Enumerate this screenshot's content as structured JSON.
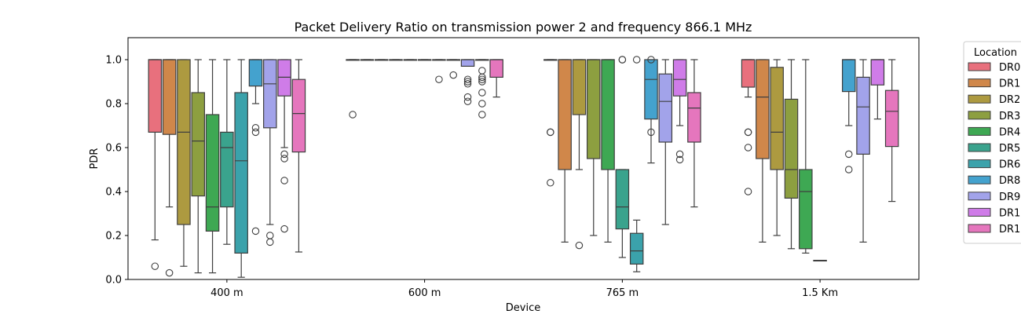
{
  "chart_data": {
    "type": "box",
    "title": "Packet Delivery Ratio on transmission power 2 and frequency 866.1 MHz",
    "xlabel": "Device",
    "ylabel": "PDR",
    "ylim": [
      0,
      1.1
    ],
    "yticks": [
      "0.0",
      "0.2",
      "0.4",
      "0.6",
      "0.8",
      "1.0"
    ],
    "categories": [
      "400 m",
      "600 m",
      "765 m",
      "1.5 Km"
    ],
    "legend": {
      "title": "Location",
      "placement": "outside-right",
      "entries": [
        "DR0",
        "DR1",
        "DR2",
        "DR3",
        "DR4",
        "DR5",
        "DR6",
        "DR8",
        "DR9",
        "DR1",
        "DR1"
      ]
    },
    "series": [
      {
        "name": "DR0",
        "color": "#e8707d",
        "boxes": [
          {
            "category": "400 m",
            "whislo": 0.18,
            "q1": 0.67,
            "median": 1.0,
            "q3": 1.0,
            "whishi": 1.0,
            "fliers": [
              0.06
            ]
          },
          {
            "category": "600 m",
            "whislo": 1.0,
            "q1": 1.0,
            "median": 1.0,
            "q3": 1.0,
            "whishi": 1.0,
            "fliers": [
              0.75
            ]
          },
          {
            "category": "765 m",
            "whislo": 1.0,
            "q1": 1.0,
            "median": 1.0,
            "q3": 1.0,
            "whishi": 1.0,
            "fliers": [
              0.67,
              0.67,
              0.44
            ]
          },
          {
            "category": "1.5 Km",
            "whislo": 0.83,
            "q1": 0.875,
            "median": 1.0,
            "q3": 1.0,
            "whishi": 1.0,
            "fliers": [
              0.67,
              0.67,
              0.6,
              0.4
            ]
          }
        ]
      },
      {
        "name": "DR1",
        "color": "#d0874a",
        "boxes": [
          {
            "category": "400 m",
            "whislo": 0.33,
            "q1": 0.66,
            "median": 1.0,
            "q3": 1.0,
            "whishi": 1.0,
            "fliers": [
              0.03
            ]
          },
          {
            "category": "600 m",
            "whislo": 1.0,
            "q1": 1.0,
            "median": 1.0,
            "q3": 1.0,
            "whishi": 1.0,
            "fliers": []
          },
          {
            "category": "765 m",
            "whislo": 0.17,
            "q1": 0.5,
            "median": 1.0,
            "q3": 1.0,
            "whishi": 1.0,
            "fliers": []
          },
          {
            "category": "1.5 Km",
            "whislo": 0.17,
            "q1": 0.55,
            "median": 0.83,
            "q3": 1.0,
            "whishi": 1.0,
            "fliers": []
          }
        ]
      },
      {
        "name": "DR2",
        "color": "#ad9a40",
        "boxes": [
          {
            "category": "400 m",
            "whislo": 0.06,
            "q1": 0.25,
            "median": 0.67,
            "q3": 1.0,
            "whishi": 1.0,
            "fliers": []
          },
          {
            "category": "600 m",
            "whislo": 1.0,
            "q1": 1.0,
            "median": 1.0,
            "q3": 1.0,
            "whishi": 1.0,
            "fliers": []
          },
          {
            "category": "765 m",
            "whislo": 0.5,
            "q1": 0.75,
            "median": 1.0,
            "q3": 1.0,
            "whishi": 1.0,
            "fliers": [
              0.155
            ]
          },
          {
            "category": "1.5 Km",
            "whislo": 0.2,
            "q1": 0.5,
            "median": 0.67,
            "q3": 0.965,
            "whishi": 1.0,
            "fliers": []
          }
        ]
      },
      {
        "name": "DR3",
        "color": "#8d9f40",
        "boxes": [
          {
            "category": "400 m",
            "whislo": 0.03,
            "q1": 0.38,
            "median": 0.63,
            "q3": 0.85,
            "whishi": 1.0,
            "fliers": []
          },
          {
            "category": "600 m",
            "whislo": 1.0,
            "q1": 1.0,
            "median": 1.0,
            "q3": 1.0,
            "whishi": 1.0,
            "fliers": []
          },
          {
            "category": "765 m",
            "whislo": 0.2,
            "q1": 0.55,
            "median": 1.0,
            "q3": 1.0,
            "whishi": 1.0,
            "fliers": []
          },
          {
            "category": "1.5 Km",
            "whislo": 0.14,
            "q1": 0.37,
            "median": 0.5,
            "q3": 0.82,
            "whishi": 1.0,
            "fliers": []
          }
        ]
      },
      {
        "name": "DR4",
        "color": "#3ea853",
        "boxes": [
          {
            "category": "400 m",
            "whislo": 0.03,
            "q1": 0.22,
            "median": 0.33,
            "q3": 0.75,
            "whishi": 1.0,
            "fliers": []
          },
          {
            "category": "600 m",
            "whislo": 1.0,
            "q1": 1.0,
            "median": 1.0,
            "q3": 1.0,
            "whishi": 1.0,
            "fliers": []
          },
          {
            "category": "765 m",
            "whislo": 0.17,
            "q1": 0.5,
            "median": 1.0,
            "q3": 1.0,
            "whishi": 1.0,
            "fliers": []
          },
          {
            "category": "1.5 Km",
            "whislo": 0.12,
            "q1": 0.14,
            "median": 0.4,
            "q3": 0.5,
            "whishi": 1.0,
            "fliers": []
          }
        ]
      },
      {
        "name": "DR5",
        "color": "#3aa38d",
        "boxes": [
          {
            "category": "400 m",
            "whislo": 0.16,
            "q1": 0.33,
            "median": 0.6,
            "q3": 0.67,
            "whishi": 1.0,
            "fliers": []
          },
          {
            "category": "600 m",
            "whislo": 1.0,
            "q1": 1.0,
            "median": 1.0,
            "q3": 1.0,
            "whishi": 1.0,
            "fliers": []
          },
          {
            "category": "765 m",
            "whislo": 0.1,
            "q1": 0.23,
            "median": 0.33,
            "q3": 0.5,
            "whishi": 0.5,
            "fliers": [
              1.0,
              1.0
            ]
          },
          {
            "category": "1.5 Km",
            "whislo": 0.087,
            "q1": 0.087,
            "median": 0.087,
            "q3": 0.087,
            "whishi": 0.087,
            "fliers": []
          }
        ]
      },
      {
        "name": "DR6",
        "color": "#3ba2ab",
        "boxes": [
          {
            "category": "400 m",
            "whislo": 0.01,
            "q1": 0.12,
            "median": 0.54,
            "q3": 0.85,
            "whishi": 1.0,
            "fliers": []
          },
          {
            "category": "600 m",
            "whislo": 1.0,
            "q1": 1.0,
            "median": 1.0,
            "q3": 1.0,
            "whishi": 1.0,
            "fliers": [
              0.91
            ]
          },
          {
            "category": "765 m",
            "whislo": 0.035,
            "q1": 0.07,
            "median": 0.13,
            "q3": 0.21,
            "whishi": 0.27,
            "fliers": [
              1.0
            ]
          },
          {
            "category": "1.5 Km",
            "whislo": null,
            "q1": null,
            "median": null,
            "q3": null,
            "whishi": null,
            "fliers": []
          }
        ]
      },
      {
        "name": "DR8",
        "color": "#44a2ce",
        "boxes": [
          {
            "category": "400 m",
            "whislo": 0.8,
            "q1": 0.88,
            "median": 1.0,
            "q3": 1.0,
            "whishi": 1.0,
            "fliers": [
              0.69,
              0.67,
              0.22
            ]
          },
          {
            "category": "600 m",
            "whislo": 1.0,
            "q1": 1.0,
            "median": 1.0,
            "q3": 1.0,
            "whishi": 1.0,
            "fliers": [
              0.93
            ]
          },
          {
            "category": "765 m",
            "whislo": 0.53,
            "q1": 0.73,
            "median": 0.91,
            "q3": 1.0,
            "whishi": 1.0,
            "fliers": [
              1.0,
              0.67
            ]
          },
          {
            "category": "1.5 Km",
            "whislo": 0.7,
            "q1": 0.855,
            "median": 1.0,
            "q3": 1.0,
            "whishi": 1.0,
            "fliers": [
              0.57,
              0.5
            ]
          }
        ]
      },
      {
        "name": "DR9",
        "color": "#a2a3ea",
        "boxes": [
          {
            "category": "400 m",
            "whislo": 0.25,
            "q1": 0.69,
            "median": 0.89,
            "q3": 1.0,
            "whishi": 1.0,
            "fliers": [
              0.2,
              0.17
            ]
          },
          {
            "category": "600 m",
            "whislo": 0.97,
            "q1": 0.97,
            "median": 1.0,
            "q3": 1.0,
            "whishi": 1.0,
            "fliers": [
              0.91,
              0.9,
              0.89,
              0.83,
              0.81
            ]
          },
          {
            "category": "765 m",
            "whislo": 0.25,
            "q1": 0.625,
            "median": 0.81,
            "q3": 0.935,
            "whishi": 1.0,
            "fliers": []
          },
          {
            "category": "1.5 Km",
            "whislo": 0.17,
            "q1": 0.57,
            "median": 0.785,
            "q3": 0.92,
            "whishi": 1.0,
            "fliers": []
          }
        ]
      },
      {
        "name": "DR1",
        "color": "#cf7ce8",
        "boxes": [
          {
            "category": "400 m",
            "whislo": 0.6,
            "q1": 0.835,
            "median": 0.92,
            "q3": 1.0,
            "whishi": 1.0,
            "fliers": [
              0.57,
              0.55,
              0.45,
              0.23
            ]
          },
          {
            "category": "600 m",
            "whislo": 1.0,
            "q1": 1.0,
            "median": 1.0,
            "q3": 1.0,
            "whishi": 1.0,
            "fliers": [
              0.95,
              0.92,
              0.91,
              0.9,
              0.85,
              0.8,
              0.75
            ]
          },
          {
            "category": "765 m",
            "whislo": 0.7,
            "q1": 0.835,
            "median": 0.91,
            "q3": 1.0,
            "whishi": 1.0,
            "fliers": [
              0.57,
              0.545
            ]
          },
          {
            "category": "1.5 Km",
            "whislo": 0.73,
            "q1": 0.885,
            "median": 1.0,
            "q3": 1.0,
            "whishi": 1.0,
            "fliers": []
          }
        ]
      },
      {
        "name": "DR1",
        "color": "#e576bd",
        "boxes": [
          {
            "category": "400 m",
            "whislo": 0.125,
            "q1": 0.58,
            "median": 0.755,
            "q3": 0.91,
            "whishi": 1.0,
            "fliers": []
          },
          {
            "category": "600 m",
            "whislo": 0.83,
            "q1": 0.92,
            "median": 1.0,
            "q3": 1.0,
            "whishi": 1.0,
            "fliers": []
          },
          {
            "category": "765 m",
            "whislo": 0.33,
            "q1": 0.625,
            "median": 0.78,
            "q3": 0.85,
            "whishi": 1.0,
            "fliers": []
          },
          {
            "category": "1.5 Km",
            "whislo": 0.355,
            "q1": 0.605,
            "median": 0.765,
            "q3": 0.86,
            "whishi": 1.0,
            "fliers": []
          }
        ]
      }
    ]
  }
}
